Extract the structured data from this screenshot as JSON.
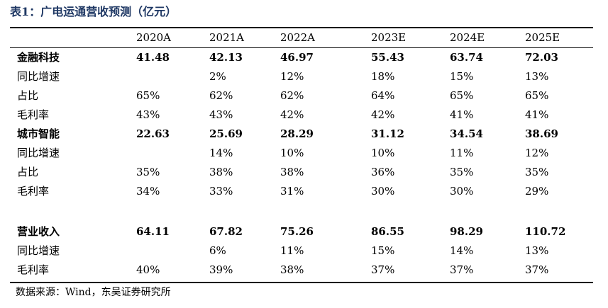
{
  "title": "表1：广电运通营收预测（亿元）",
  "header": [
    "2020A",
    "2021A",
    "2022A",
    "2023E",
    "2024E",
    "2025E"
  ],
  "rows": [
    {
      "label": "金融科技",
      "bold": true,
      "values": [
        "41.48",
        "42.13",
        "46.97",
        "55.43",
        "63.74",
        "72.03"
      ]
    },
    {
      "label": "同比增速",
      "bold": false,
      "values": [
        "",
        "2%",
        "12%",
        "18%",
        "15%",
        "13%"
      ]
    },
    {
      "label": "占比",
      "bold": false,
      "values": [
        "65%",
        "62%",
        "62%",
        "64%",
        "65%",
        "65%"
      ]
    },
    {
      "label": "毛利率",
      "bold": false,
      "values": [
        "43%",
        "43%",
        "42%",
        "42%",
        "41%",
        "41%"
      ]
    },
    {
      "label": "城市智能",
      "bold": true,
      "values": [
        "22.63",
        "25.69",
        "28.29",
        "31.12",
        "34.54",
        "38.69"
      ]
    },
    {
      "label": "同比增速",
      "bold": false,
      "values": [
        "",
        "14%",
        "10%",
        "10%",
        "11%",
        "12%"
      ]
    },
    {
      "label": "占比",
      "bold": false,
      "values": [
        "35%",
        "38%",
        "38%",
        "36%",
        "35%",
        "35%"
      ]
    },
    {
      "label": "毛利率",
      "bold": false,
      "values": [
        "34%",
        "33%",
        "31%",
        "30%",
        "30%",
        "29%"
      ]
    },
    {
      "label": "营业收入",
      "bold": true,
      "values": [
        "64.11",
        "67.82",
        "75.26",
        "86.55",
        "98.29",
        "110.72"
      ]
    },
    {
      "label": "同比增速",
      "bold": false,
      "values": [
        "",
        "6%",
        "11%",
        "15%",
        "14%",
        "13%"
      ]
    },
    {
      "label": "毛利率",
      "bold": false,
      "values": [
        "40%",
        "39%",
        "38%",
        "37%",
        "37%",
        "37%"
      ]
    }
  ],
  "source": "数据来源：Wind，东吴证券研究所"
}
